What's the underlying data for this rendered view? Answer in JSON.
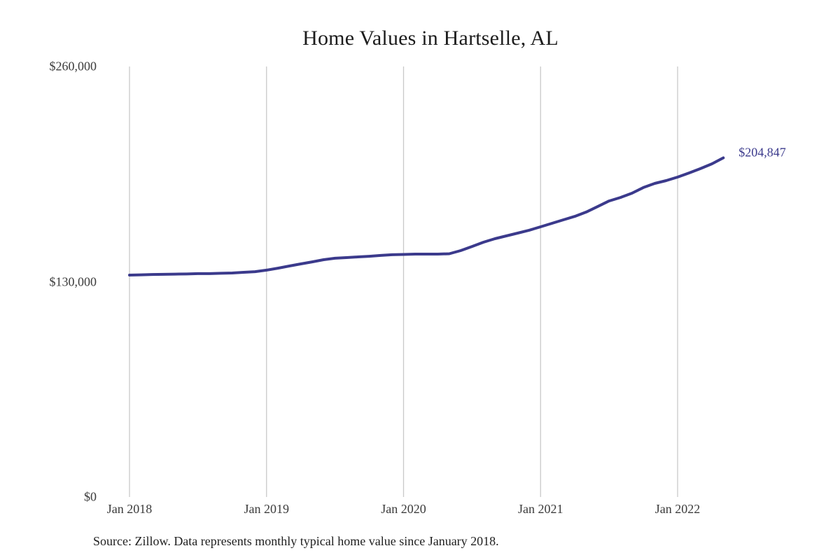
{
  "chart_data": {
    "type": "line",
    "title": "Home Values in Hartselle, AL",
    "source_note": "Source: Zillow. Data represents monthly typical home value since January 2018.",
    "legend": "none",
    "grid": "vertical-only",
    "colors": {
      "line": "#3b3a8c",
      "end_label": "#3b3a8c",
      "gridline": "#c9c9c9",
      "tick_text": "#3c3c3c",
      "title_text": "#1c1c1c"
    },
    "ylim": [
      0,
      260000
    ],
    "y_ticks": [
      {
        "label": "$0",
        "value": 0
      },
      {
        "label": "$130,000",
        "value": 130000
      },
      {
        "label": "$260,000",
        "value": 260000
      }
    ],
    "x_ticks": [
      {
        "label": "Jan 2018",
        "month_index": 0
      },
      {
        "label": "Jan 2019",
        "month_index": 12
      },
      {
        "label": "Jan 2020",
        "month_index": 24
      },
      {
        "label": "Jan 2021",
        "month_index": 36
      },
      {
        "label": "Jan 2022",
        "month_index": 48
      }
    ],
    "end_label": "$204,847",
    "series": [
      {
        "name": "Typical home value",
        "x": [
          "Jan 2018",
          "Feb 2018",
          "Mar 2018",
          "Apr 2018",
          "May 2018",
          "Jun 2018",
          "Jul 2018",
          "Aug 2018",
          "Sep 2018",
          "Oct 2018",
          "Nov 2018",
          "Dec 2018",
          "Jan 2019",
          "Feb 2019",
          "Mar 2019",
          "Apr 2019",
          "May 2019",
          "Jun 2019",
          "Jul 2019",
          "Aug 2019",
          "Sep 2019",
          "Oct 2019",
          "Nov 2019",
          "Dec 2019",
          "Jan 2020",
          "Feb 2020",
          "Mar 2020",
          "Apr 2020",
          "May 2020",
          "Jun 2020",
          "Jul 2020",
          "Aug 2020",
          "Sep 2020",
          "Oct 2020",
          "Nov 2020",
          "Dec 2020",
          "Jan 2021",
          "Feb 2021",
          "Mar 2021",
          "Apr 2021",
          "May 2021",
          "Jun 2021",
          "Jul 2021",
          "Aug 2021",
          "Sep 2021",
          "Oct 2021",
          "Nov 2021",
          "Dec 2021",
          "Jan 2022",
          "Feb 2022",
          "Mar 2022",
          "Apr 2022",
          "May 2022"
        ],
        "values": [
          134000,
          134200,
          134400,
          134500,
          134600,
          134700,
          134900,
          134900,
          135100,
          135300,
          135700,
          136100,
          137000,
          138200,
          139500,
          140800,
          142000,
          143300,
          144200,
          144600,
          145000,
          145400,
          145900,
          146300,
          146500,
          146700,
          146700,
          146700,
          146900,
          148800,
          151300,
          153900,
          156000,
          157700,
          159400,
          161100,
          163200,
          165300,
          167400,
          169500,
          172100,
          175400,
          178800,
          180900,
          183500,
          186900,
          189400,
          191100,
          193200,
          195700,
          198300,
          201200,
          204847
        ]
      }
    ]
  }
}
